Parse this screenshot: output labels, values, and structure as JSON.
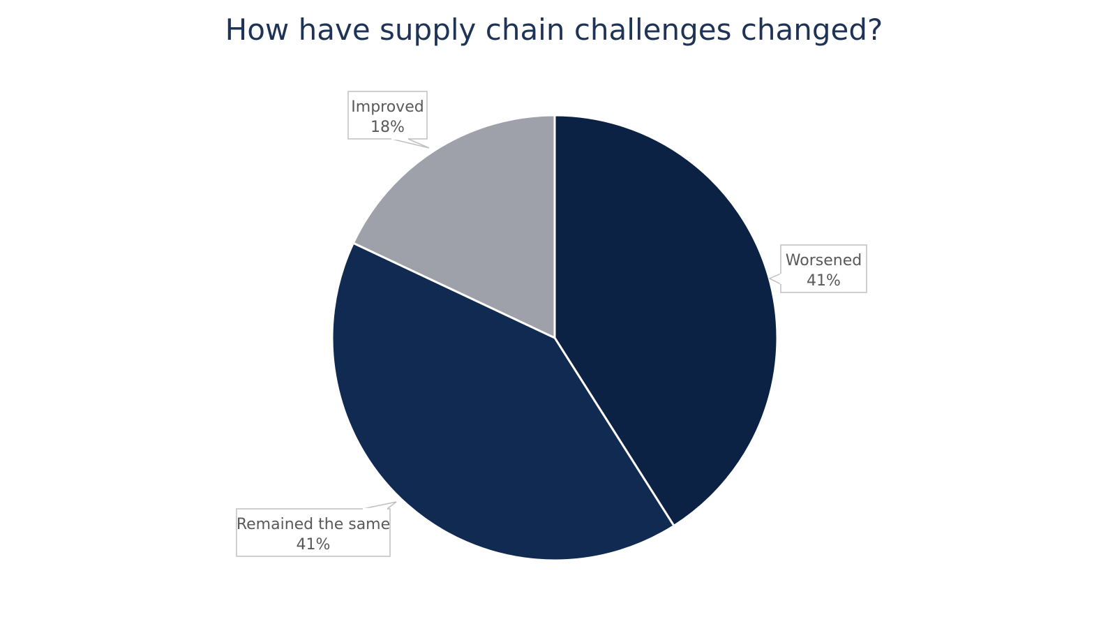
{
  "chart_data": {
    "type": "pie",
    "title": "How have supply chain challenges changed?",
    "slices": [
      {
        "label": "Worsened",
        "value": 41,
        "value_label": "41%",
        "color": "#0c2245"
      },
      {
        "label": "Remained the same",
        "value": 41,
        "value_label": "41%",
        "color": "#102a52"
      },
      {
        "label": "Improved",
        "value": 18,
        "value_label": "18%",
        "color": "#9fa1aa"
      }
    ],
    "start": "12 o'clock, clockwise",
    "slice_separator_color": "#ffffff",
    "callout_border_color": "#bfbfbf"
  }
}
